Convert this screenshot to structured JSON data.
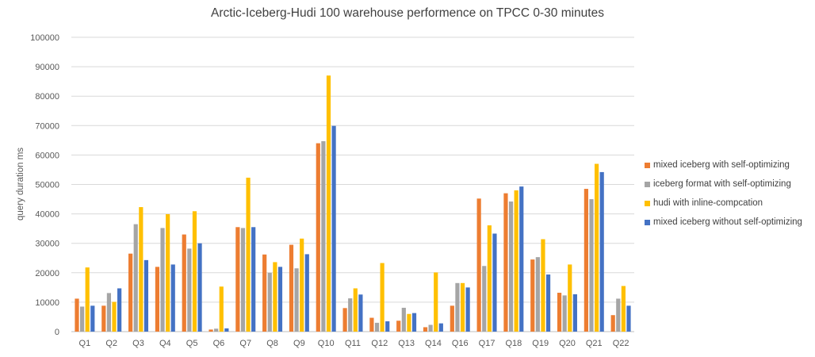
{
  "chart_data": {
    "type": "bar",
    "title": "Arctic-Iceberg-Hudi 100 warehouse performence on TPCC 0-30 minutes",
    "xlabel": "",
    "ylabel": "query duration ms",
    "ylim": [
      0,
      100000
    ],
    "yticks": [
      0,
      10000,
      20000,
      30000,
      40000,
      50000,
      60000,
      70000,
      80000,
      90000,
      100000
    ],
    "legend_position": "right",
    "categories": [
      "Q1",
      "Q2",
      "Q3",
      "Q4",
      "Q5",
      "Q6",
      "Q7",
      "Q8",
      "Q9",
      "Q10",
      "Q11",
      "Q12",
      "Q13",
      "Q14",
      "Q16",
      "Q17",
      "Q18",
      "Q19",
      "Q20",
      "Q21",
      "Q22"
    ],
    "series": [
      {
        "name": "mixed iceberg with self-optimizing",
        "color": "#ED7D31",
        "values": [
          11200,
          8800,
          26500,
          22000,
          33000,
          700,
          35500,
          26200,
          29500,
          64000,
          8000,
          4700,
          3700,
          1500,
          8800,
          45200,
          47000,
          24500,
          13200,
          48500,
          5600
        ]
      },
      {
        "name": "iceberg format with self-optimizing",
        "color": "#A5A5A5",
        "values": [
          8500,
          13100,
          36500,
          35200,
          28200,
          1000,
          35200,
          20000,
          21500,
          64700,
          11300,
          3000,
          8100,
          2300,
          16500,
          22300,
          44200,
          25300,
          12300,
          45000,
          11200
        ]
      },
      {
        "name": "hudi with inline-compcation",
        "color": "#FFC000",
        "values": [
          21800,
          10100,
          42300,
          39900,
          40900,
          15300,
          52300,
          23600,
          31600,
          87000,
          14700,
          23300,
          6000,
          20100,
          16500,
          36100,
          48000,
          31400,
          22800,
          57000,
          15500
        ]
      },
      {
        "name": "mixed iceberg without self-optimizing",
        "color": "#4472C4",
        "values": [
          8800,
          14700,
          24300,
          22800,
          30000,
          1100,
          35500,
          22000,
          26300,
          69900,
          12600,
          3500,
          6300,
          2800,
          15000,
          33300,
          49300,
          19400,
          12700,
          54200,
          8800
        ]
      }
    ]
  }
}
